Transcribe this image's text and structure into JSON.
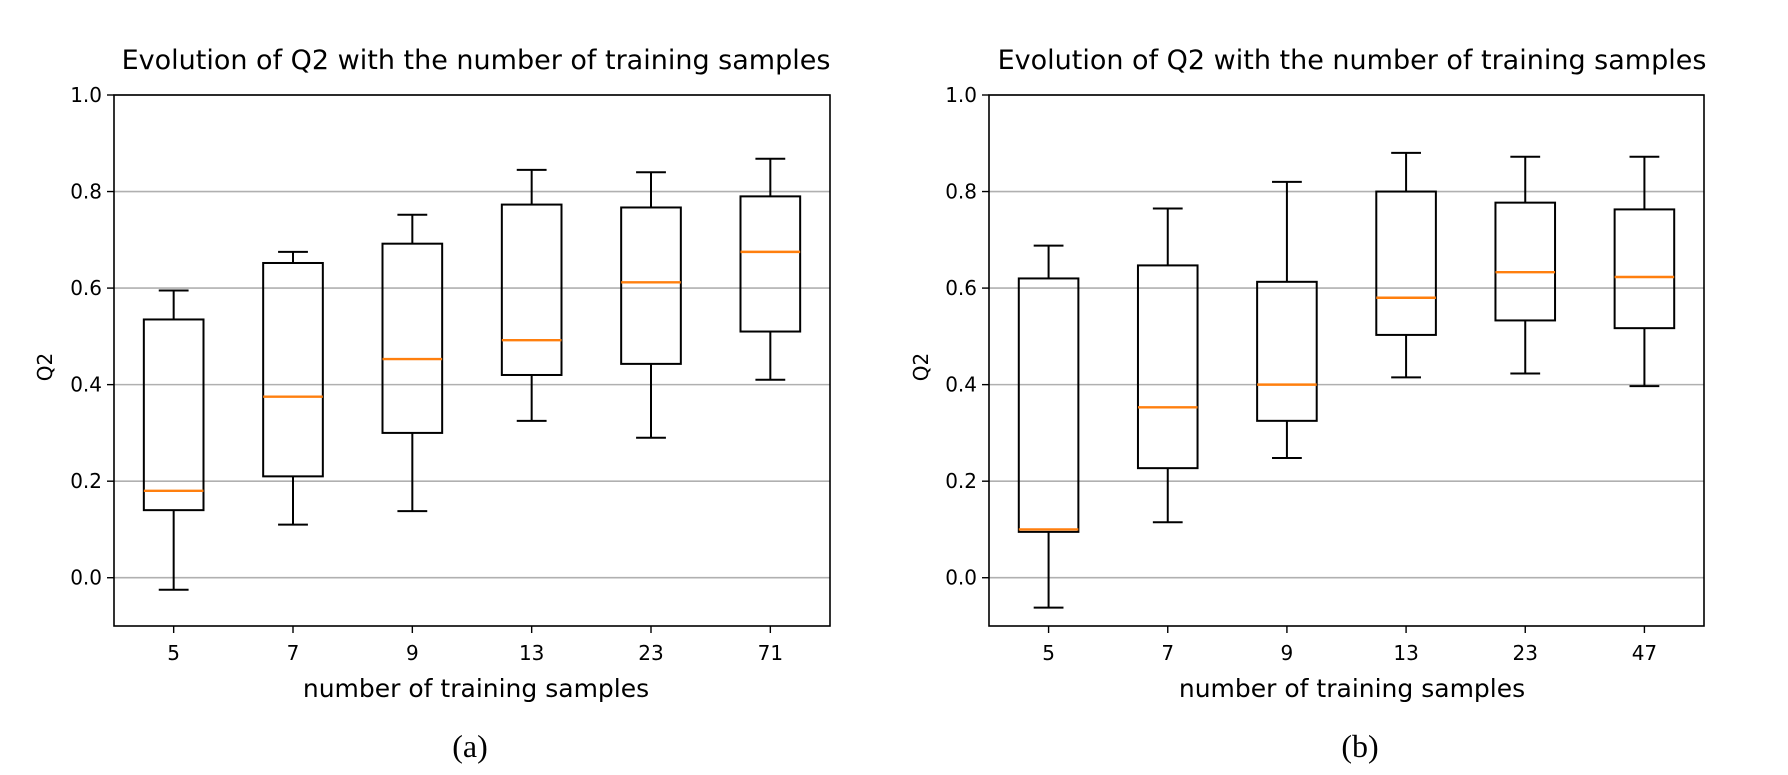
{
  "chart_data": [
    {
      "type": "box",
      "title": "Evolution of Q2 with the number of training samples",
      "xlabel": "number of training samples",
      "ylabel": "Q2",
      "caption": "(a)",
      "ylim": [
        -0.1,
        1.0
      ],
      "yticks": [
        0.0,
        0.2,
        0.4,
        0.6,
        0.8,
        1.0
      ],
      "ytick_labels": [
        "0.0",
        "0.2",
        "0.4",
        "0.6",
        "0.8",
        "1.0"
      ],
      "grid": "horizontal",
      "categories": [
        "5",
        "7",
        "9",
        "13",
        "23",
        "71"
      ],
      "boxes": [
        {
          "whislo": -0.025,
          "q1": 0.14,
          "med": 0.18,
          "q3": 0.535,
          "whishi": 0.595
        },
        {
          "whislo": 0.11,
          "q1": 0.21,
          "med": 0.375,
          "q3": 0.652,
          "whishi": 0.675
        },
        {
          "whislo": 0.138,
          "q1": 0.3,
          "med": 0.453,
          "q3": 0.692,
          "whishi": 0.752
        },
        {
          "whislo": 0.325,
          "q1": 0.42,
          "med": 0.492,
          "q3": 0.773,
          "whishi": 0.845
        },
        {
          "whislo": 0.29,
          "q1": 0.443,
          "med": 0.612,
          "q3": 0.767,
          "whishi": 0.84
        },
        {
          "whislo": 0.41,
          "q1": 0.51,
          "med": 0.675,
          "q3": 0.79,
          "whishi": 0.868
        }
      ]
    },
    {
      "type": "box",
      "title": "Evolution of Q2 with the number of training samples",
      "xlabel": "number of training samples",
      "ylabel": "Q2",
      "caption": "(b)",
      "ylim": [
        -0.1,
        1.0
      ],
      "yticks": [
        0.0,
        0.2,
        0.4,
        0.6,
        0.8,
        1.0
      ],
      "ytick_labels": [
        "0.0",
        "0.2",
        "0.4",
        "0.6",
        "0.8",
        "1.0"
      ],
      "grid": "horizontal",
      "categories": [
        "5",
        "7",
        "9",
        "13",
        "23",
        "47"
      ],
      "boxes": [
        {
          "whislo": -0.062,
          "q1": 0.095,
          "med": 0.1,
          "q3": 0.62,
          "whishi": 0.688
        },
        {
          "whislo": 0.115,
          "q1": 0.227,
          "med": 0.353,
          "q3": 0.647,
          "whishi": 0.765
        },
        {
          "whislo": 0.248,
          "q1": 0.325,
          "med": 0.4,
          "q3": 0.613,
          "whishi": 0.82
        },
        {
          "whislo": 0.415,
          "q1": 0.503,
          "med": 0.58,
          "q3": 0.8,
          "whishi": 0.88
        },
        {
          "whislo": 0.423,
          "q1": 0.533,
          "med": 0.633,
          "q3": 0.777,
          "whishi": 0.872
        },
        {
          "whislo": 0.397,
          "q1": 0.517,
          "med": 0.623,
          "q3": 0.763,
          "whishi": 0.872
        }
      ]
    }
  ],
  "colors": {
    "box": "#000000",
    "median": "#ff7f0e",
    "grid": "#b0b0b0",
    "background": "#ffffff"
  }
}
